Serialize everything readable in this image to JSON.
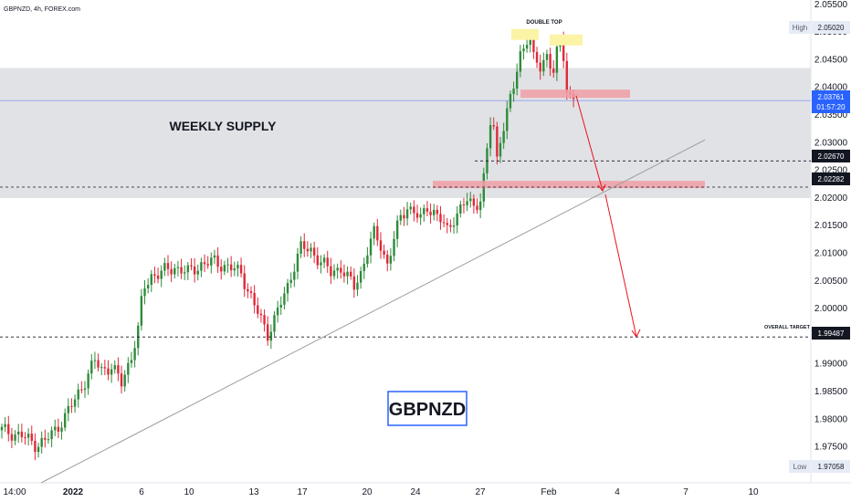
{
  "header": {
    "symbol_line": "GBPNZD, 4h, FOREX.com"
  },
  "price_axis": {
    "ticks": [
      "2.05500",
      "2.05000",
      "2.04500",
      "2.04000",
      "2.03500",
      "2.03000",
      "2.02500",
      "2.02000",
      "2.01500",
      "2.01000",
      "2.00500",
      "2.00000",
      "1.99500",
      "1.99000",
      "1.98500",
      "1.98000",
      "1.97500"
    ],
    "high_label": "High",
    "high_value": "2.05020",
    "low_label": "Low",
    "low_value": "1.97058",
    "current_price": "2.03761",
    "countdown": "01:57:20",
    "level_a": "2.02670",
    "level_b": "2.02282",
    "target_level": "1.99487"
  },
  "time_axis": {
    "ticks": [
      "14:00",
      "2022",
      "6",
      "10",
      "13",
      "17",
      "20",
      "24",
      "27",
      "Feb",
      "4",
      "7",
      "10"
    ]
  },
  "annotations": {
    "weekly_supply": "WEEKLY SUPPLY",
    "double_top": "DOUBLE TOP",
    "overall_target": "OVERALL TARGET",
    "pair_box": "GBPNZD"
  },
  "colors": {
    "up": "#2e8b3a",
    "down": "#e0293a",
    "supply_zone": "#e1e2e5",
    "red_box": "#f09ea6",
    "yellow_box": "#fbf3a6",
    "pair_box_border": "#2962ff",
    "current_price": "#2962ff",
    "arrow": "#e8131f"
  },
  "chart_data": {
    "type": "candlestick",
    "title": "GBPNZD, 4h, FOREX.com",
    "ylim": [
      1.9685,
      2.0558
    ],
    "y_ticks": [
      2.055,
      2.05,
      2.045,
      2.04,
      2.035,
      2.03,
      2.025,
      2.02,
      2.015,
      2.01,
      2.005,
      2.0,
      1.995,
      1.99,
      1.985,
      1.98,
      1.975
    ],
    "x_tick_labels": [
      "14:00",
      "2022",
      "6",
      "10",
      "13",
      "17",
      "20",
      "24",
      "27",
      "Feb",
      "4",
      "7",
      "10"
    ],
    "price_path": [
      [
        0,
        1.978
      ],
      [
        6,
        1.977
      ],
      [
        10,
        1.9755
      ],
      [
        13,
        1.976
      ],
      [
        16,
        1.978
      ],
      [
        19,
        1.9805
      ],
      [
        22,
        1.9835
      ],
      [
        25,
        1.987
      ],
      [
        28,
        1.9905
      ],
      [
        30,
        1.989
      ],
      [
        33,
        1.9895
      ],
      [
        36,
        1.9865
      ],
      [
        39,
        1.9915
      ],
      [
        41,
        1.996
      ],
      [
        42,
        2.001
      ],
      [
        43,
        2.004
      ],
      [
        45,
        2.006
      ],
      [
        48,
        2.0065
      ],
      [
        52,
        2.0075
      ],
      [
        56,
        2.0065
      ],
      [
        60,
        2.008
      ],
      [
        64,
        2.0085
      ],
      [
        68,
        2.0075
      ],
      [
        72,
        2.0065
      ],
      [
        74,
        2.0035
      ],
      [
        76,
        2.0005
      ],
      [
        78,
        1.998
      ],
      [
        80,
        1.9955
      ],
      [
        82,
        1.998
      ],
      [
        84,
        2.001
      ],
      [
        86,
        2.004
      ],
      [
        88,
        2.008
      ],
      [
        90,
        2.011
      ],
      [
        93,
        2.0105
      ],
      [
        96,
        2.0085
      ],
      [
        99,
        2.0065
      ],
      [
        102,
        2.0075
      ],
      [
        104,
        2.0055
      ],
      [
        106,
        2.004
      ],
      [
        108,
        2.0065
      ],
      [
        110,
        2.0105
      ],
      [
        112,
        2.0135
      ],
      [
        114,
        2.0115
      ],
      [
        116,
        2.008
      ],
      [
        118,
        2.0125
      ],
      [
        120,
        2.0165
      ],
      [
        122,
        2.0185
      ],
      [
        124,
        2.0175
      ],
      [
        126,
        2.016
      ],
      [
        128,
        2.0185
      ],
      [
        130,
        2.0175
      ],
      [
        132,
        2.016
      ],
      [
        134,
        2.014
      ],
      [
        136,
        2.0165
      ],
      [
        138,
        2.018
      ],
      [
        140,
        2.0195
      ],
      [
        142,
        2.0185
      ],
      [
        144,
        2.02
      ],
      [
        145,
        2.0235
      ],
      [
        146,
        2.0285
      ],
      [
        147,
        2.0335
      ],
      [
        148,
        2.0325
      ],
      [
        149,
        2.027
      ],
      [
        150,
        2.031
      ],
      [
        152,
        2.0355
      ],
      [
        154,
        2.04
      ],
      [
        156,
        2.046
      ],
      [
        158,
        2.049
      ],
      [
        159,
        2.0485
      ],
      [
        160,
        2.045
      ],
      [
        162,
        2.0435
      ],
      [
        164,
        2.046
      ],
      [
        166,
        2.043
      ],
      [
        167,
        2.046
      ],
      [
        168,
        2.048
      ],
      [
        169,
        2.0455
      ],
      [
        170,
        2.0395
      ],
      [
        171,
        2.0385
      ],
      [
        172,
        2.0385
      ]
    ],
    "overlays": {
      "weekly_supply": [
        2.02,
        2.0435
      ],
      "double_top_highs": [
        2.0499,
        2.0489
      ],
      "resistance_box": [
        2.0385,
        2.0396
      ],
      "retest_box": [
        2.0223,
        2.0231
      ],
      "support_level": 2.0267,
      "trendline": [
        [
          1.9685,
          "start"
        ],
        [
          2.0305,
          "end"
        ]
      ],
      "projection": [
        2.0385,
        2.0213,
        1.9949
      ],
      "overall_target": 1.99487
    }
  }
}
